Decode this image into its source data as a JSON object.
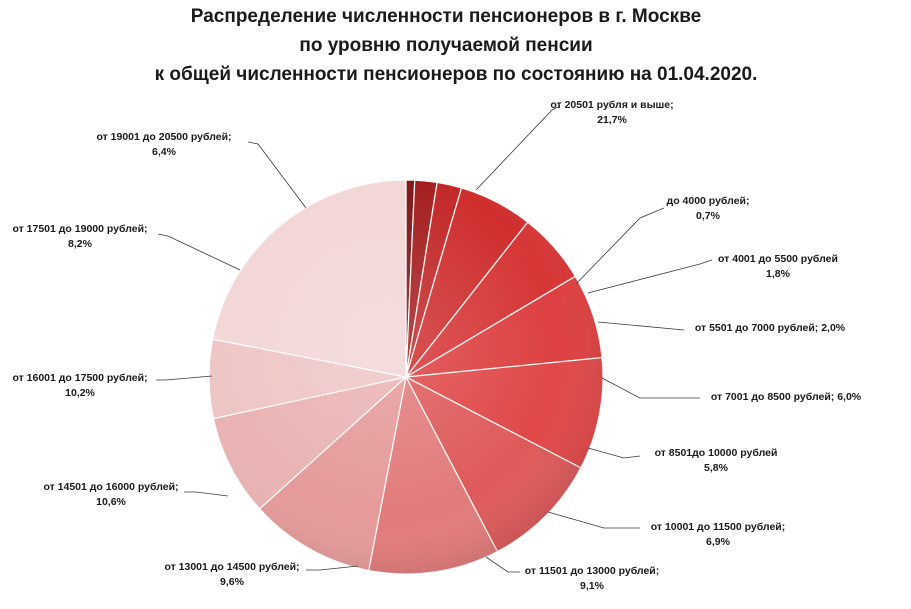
{
  "chart_data": {
    "type": "pie",
    "title": [
      "Распределение численности пенсионеров в г. Москве",
      "по уровню получаемой пенсии",
      "к общей численности пенсионеров по состоянию на 01.04.2020."
    ],
    "start": "twelve o'clock",
    "direction": "clockwise",
    "slices": [
      {
        "label_lines": [
          "до 4000 рублей;",
          "0,7%"
        ],
        "value": 0.7,
        "color": "#7e1616"
      },
      {
        "label_lines": [
          "от  4001 до 5500 рублей",
          "1,8%"
        ],
        "value": 1.8,
        "color": "#a51f1f"
      },
      {
        "label_lines": [
          "от  5501 до 7000 рублей;   2,0%"
        ],
        "value": 2.0,
        "color": "#c22828"
      },
      {
        "label_lines": [
          "от  7001 до 8500 рублей;   6,0%"
        ],
        "value": 6.0,
        "color": "#cf2e2e"
      },
      {
        "label_lines": [
          "от  8501до 10000 рублей",
          "5,8%"
        ],
        "value": 5.8,
        "color": "#d63636"
      },
      {
        "label_lines": [
          "от  10001 до 11500 рублей;",
          "6,9%"
        ],
        "value": 6.9,
        "color": "#dd4040"
      },
      {
        "label_lines": [
          "от  11501 до 13000 рублей;",
          "9,1%"
        ],
        "value": 9.1,
        "color": "#e04848"
      },
      {
        "label_lines": [
          "от  13001 до 14500 рублей;",
          "9,6%"
        ],
        "value": 9.6,
        "color": "#de5a5a"
      },
      {
        "label_lines": [
          "от  14501 до 16000 рублей;",
          "10,6%"
        ],
        "value": 10.6,
        "color": "#e27b7b"
      },
      {
        "label_lines": [
          "от  16001 до 17500 рублей;",
          "10,2%"
        ],
        "value": 10.2,
        "color": "#e69a9a"
      },
      {
        "label_lines": [
          "от  17501 до 19000 рублей;",
          "8,2%"
        ],
        "value": 8.2,
        "color": "#eab3b3"
      },
      {
        "label_lines": [
          "от  19001 до 20500 рублей;",
          "6,4%"
        ],
        "value": 6.4,
        "color": "#efc6c6"
      },
      {
        "label_lines": [
          "от  20501 рубля  и выше;",
          "21,7%"
        ],
        "value": 21.7,
        "color": "#f3d6d6"
      }
    ]
  }
}
